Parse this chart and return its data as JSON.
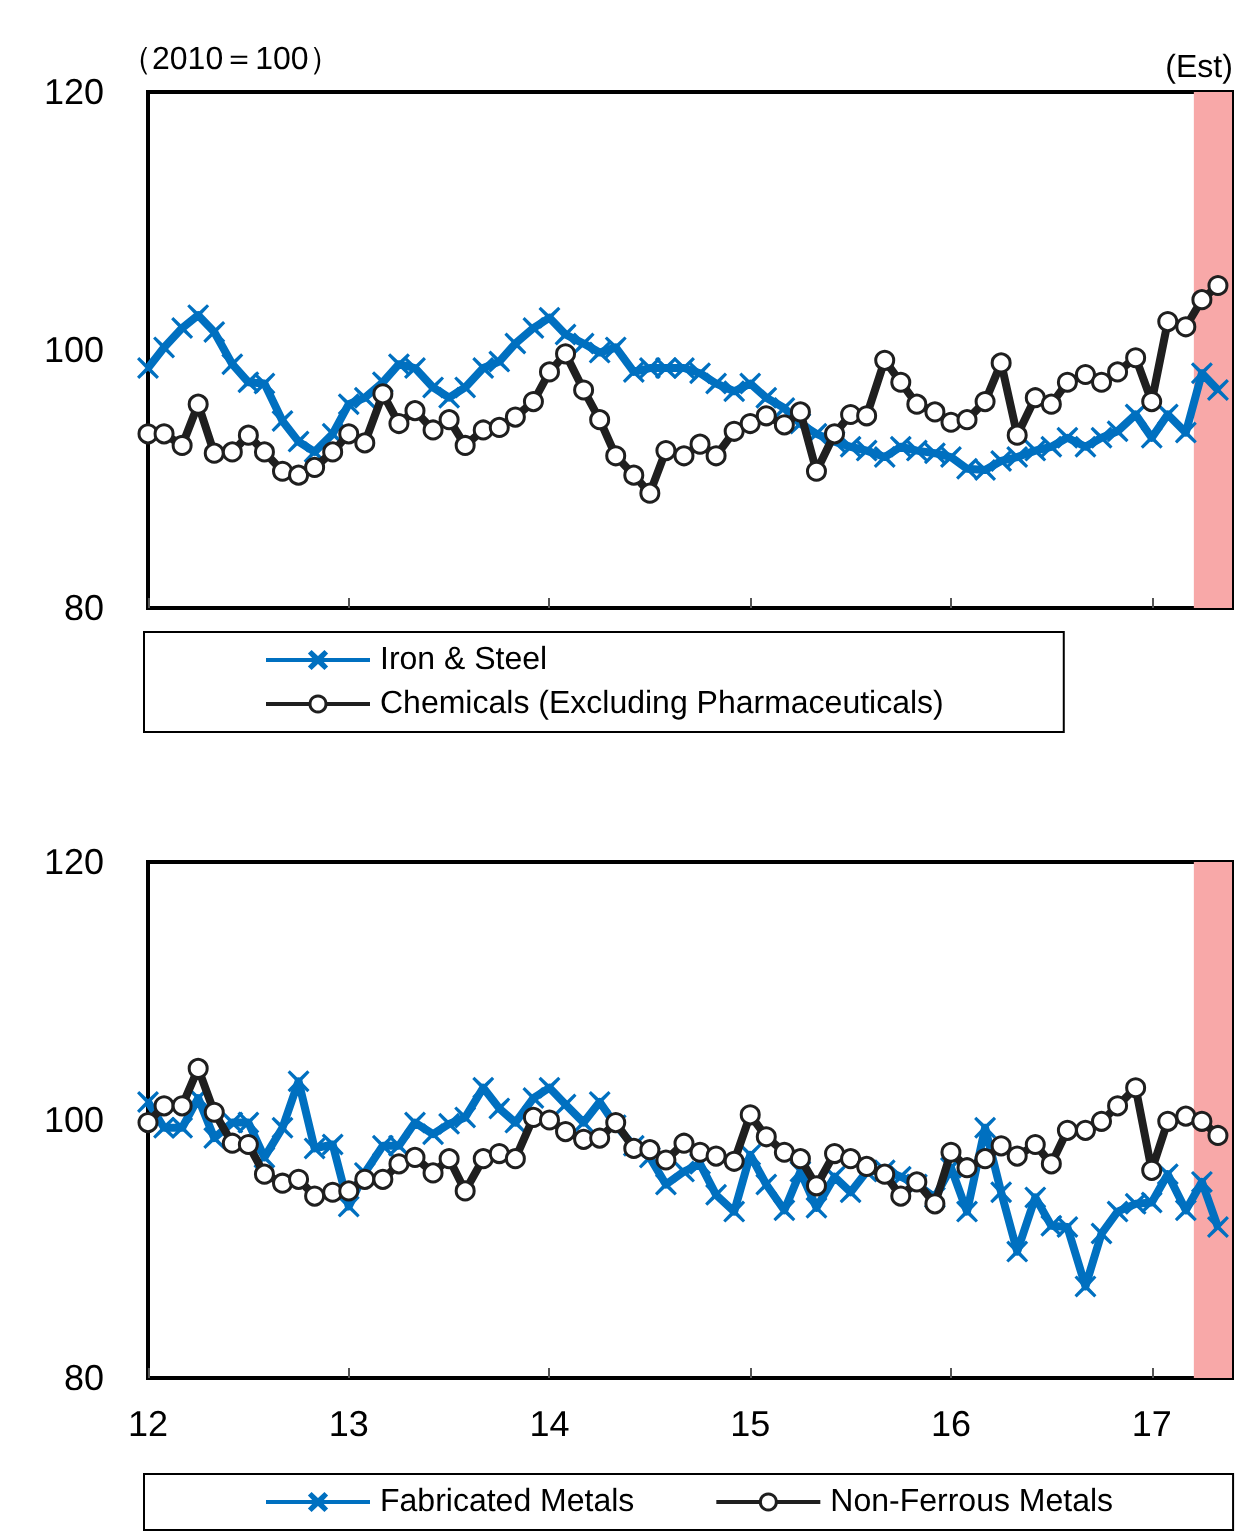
{
  "chart_data": [
    {
      "type": "line",
      "ylabel": "（2010＝100）",
      "x": [
        12,
        12.08,
        12.17,
        12.25,
        12.33,
        12.42,
        12.5,
        12.58,
        12.67,
        12.75,
        12.83,
        12.92,
        13,
        13.08,
        13.17,
        13.25,
        13.33,
        13.42,
        13.5,
        13.58,
        13.67,
        13.75,
        13.83,
        13.92,
        14,
        14.08,
        14.17,
        14.25,
        14.33,
        14.42,
        14.5,
        14.58,
        14.67,
        14.75,
        14.83,
        14.92,
        15,
        15.08,
        15.17,
        15.25,
        15.33,
        15.42,
        15.5,
        15.58,
        15.67,
        15.75,
        15.83,
        15.92,
        16,
        16.08,
        16.17,
        16.25,
        16.33,
        16.42,
        16.5,
        16.58,
        16.67,
        16.75,
        16.83,
        16.92,
        17,
        17.08,
        17.17,
        17.25,
        17.33
      ],
      "series": [
        {
          "name": "Iron & Steel",
          "color": "#0070c0",
          "marker": "cross",
          "values": [
            98.6,
            100.2,
            101.7,
            102.7,
            101.4,
            98.9,
            97.5,
            97.4,
            94.5,
            92.9,
            92.1,
            93.5,
            95.8,
            96.3,
            97.5,
            98.9,
            98.6,
            97.1,
            96.3,
            97.1,
            98.6,
            99.1,
            100.5,
            101.7,
            102.5,
            101.2,
            100.5,
            99.8,
            100.2,
            98.3,
            98.6,
            98.6,
            98.6,
            98.2,
            97.4,
            96.8,
            97.4,
            96.3,
            95.5,
            94.3,
            93.5,
            92.9,
            92.5,
            92.2,
            91.7,
            92.5,
            92.2,
            92,
            91.7,
            90.8,
            90.7,
            91.4,
            91.7,
            92.2,
            92.5,
            93.2,
            92.5,
            93.2,
            93.7,
            95,
            93.2,
            95,
            93.6,
            98.2,
            96.9
          ]
        },
        {
          "name": "Chemicals (Excluding Pharmaceuticals)",
          "color": "#1f1f1f",
          "marker": "circle",
          "values": [
            93.5,
            93.5,
            92.6,
            95.8,
            92,
            92.1,
            93.4,
            92.1,
            90.6,
            90.3,
            90.9,
            92.1,
            93.5,
            92.8,
            96.6,
            94.3,
            95.3,
            93.8,
            94.6,
            92.6,
            93.8,
            94,
            94.8,
            96,
            98.3,
            99.7,
            96.9,
            94.6,
            91.8,
            90.3,
            88.9,
            92.2,
            91.8,
            92.7,
            91.8,
            93.7,
            94.3,
            94.9,
            94.2,
            95.2,
            90.6,
            93.5,
            95,
            94.9,
            99.2,
            97.5,
            95.8,
            95.2,
            94.4,
            94.6,
            96,
            99,
            93.4,
            96.3,
            95.8,
            97.5,
            98.1,
            97.5,
            98.3,
            99.4,
            96,
            102.2,
            101.8,
            103.9,
            105
          ]
        }
      ],
      "xlim": [
        12,
        17.4
      ],
      "xticks": [
        12,
        13,
        14,
        15,
        16,
        17
      ],
      "ylim": [
        80,
        120
      ],
      "yticks": [
        80,
        100,
        120
      ],
      "tick_labels": "y",
      "grid": false,
      "legend": "bottom",
      "bands": [
        {
          "axis": "x",
          "from": 17.21,
          "to": 17.4,
          "label": "(Est)",
          "color": "#f8a8a8"
        }
      ]
    },
    {
      "type": "line",
      "x": [
        12,
        12.08,
        12.17,
        12.25,
        12.33,
        12.42,
        12.5,
        12.58,
        12.67,
        12.75,
        12.83,
        12.92,
        13,
        13.08,
        13.17,
        13.25,
        13.33,
        13.42,
        13.5,
        13.58,
        13.67,
        13.75,
        13.83,
        13.92,
        14,
        14.08,
        14.17,
        14.25,
        14.33,
        14.42,
        14.5,
        14.58,
        14.67,
        14.75,
        14.83,
        14.92,
        15,
        15.08,
        15.17,
        15.25,
        15.33,
        15.42,
        15.5,
        15.58,
        15.67,
        15.75,
        15.83,
        15.92,
        16,
        16.08,
        16.17,
        16.25,
        16.33,
        16.42,
        16.5,
        16.58,
        16.67,
        16.75,
        16.83,
        16.92,
        17,
        17.08,
        17.17,
        17.25,
        17.33
      ],
      "series": [
        {
          "name": "Fabricated Metals",
          "color": "#0070c0",
          "marker": "cross",
          "values": [
            101.4,
            99.4,
            99.4,
            101.7,
            98.6,
            99.8,
            99.8,
            97.1,
            99.4,
            103,
            97.8,
            98.1,
            93.3,
            95.9,
            98,
            98,
            99.8,
            98.9,
            99.7,
            100.2,
            102.5,
            100.9,
            99.8,
            101.7,
            102.5,
            101.2,
            99.8,
            101.4,
            99.6,
            98,
            97.1,
            95,
            96,
            96.6,
            94.2,
            92.9,
            97.3,
            95,
            93,
            96,
            93.2,
            95.6,
            94.4,
            96,
            96.1,
            95.6,
            95,
            94,
            96.3,
            92.9,
            99.4,
            94.4,
            89.8,
            94,
            91.8,
            91.7,
            87.1,
            91.2,
            92.9,
            93.5,
            93.6,
            95.8,
            93,
            95.2,
            91.7
          ]
        },
        {
          "name": "Non-Ferrous Metals",
          "color": "#1f1f1f",
          "marker": "circle",
          "values": [
            99.8,
            101.1,
            101.1,
            104,
            100.6,
            98.2,
            98.1,
            95.8,
            95.1,
            95.4,
            94.1,
            94.4,
            94.5,
            95.4,
            95.4,
            96.6,
            97.1,
            95.9,
            97,
            94.5,
            97,
            97.4,
            97,
            100.2,
            100,
            99.1,
            98.5,
            98.6,
            99.8,
            97.8,
            97.7,
            96.9,
            98.2,
            97.5,
            97.2,
            96.8,
            100.4,
            98.7,
            97.5,
            97,
            94.9,
            97.4,
            97,
            96.4,
            95.8,
            94.1,
            95.2,
            93.5,
            97.5,
            96.3,
            97,
            98,
            97.2,
            98.1,
            96.6,
            99.2,
            99.2,
            99.9,
            101.1,
            102.5,
            96.1,
            99.9,
            100.3,
            99.9,
            98.8
          ]
        }
      ],
      "xlim": [
        12,
        17.4
      ],
      "xticks": [
        12,
        13,
        14,
        15,
        16,
        17
      ],
      "ylim": [
        80,
        120
      ],
      "yticks": [
        80,
        100,
        120
      ],
      "grid": false,
      "legend": "bottom",
      "bands": [
        {
          "axis": "x",
          "from": 17.21,
          "to": 17.4,
          "color": "#f8a8a8"
        }
      ]
    }
  ]
}
